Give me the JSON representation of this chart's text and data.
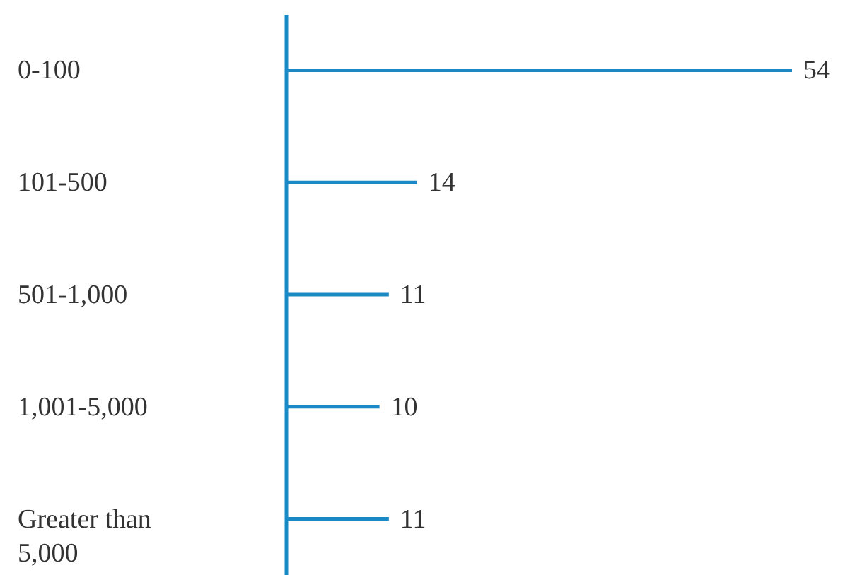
{
  "chart_data": {
    "type": "bar",
    "orientation": "horizontal",
    "categories": [
      "0-100",
      "101-500",
      "501-1,000",
      "1,001-5,000",
      "Greater than 5,000"
    ],
    "values": [
      54,
      14,
      11,
      10,
      11
    ],
    "color": "#1a8ac6",
    "data_labels": true,
    "grid": false
  }
}
